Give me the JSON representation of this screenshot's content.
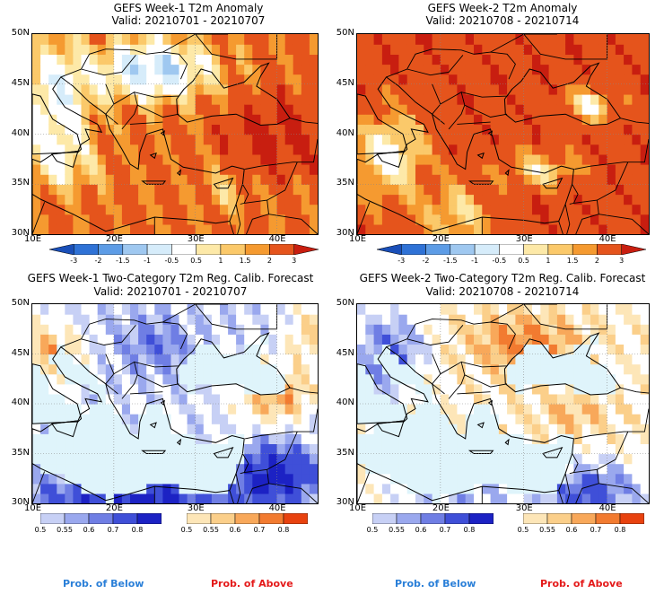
{
  "panels": [
    {
      "title": "GEFS Week-1 T2m Anomaly",
      "valid": "Valid: 20210701 - 20210707",
      "kind": "anomaly",
      "week": 1
    },
    {
      "title": "GEFS Week-2 T2m Anomaly",
      "valid": "Valid: 20210708 - 20210714",
      "kind": "anomaly",
      "week": 2
    },
    {
      "title": "GEFS Week-1 Two-Category T2m Reg. Calib. Forecast",
      "valid": "Valid: 20210701 - 20210707",
      "kind": "prob",
      "week": 1
    },
    {
      "title": "GEFS Week-2 Two-Category T2m Reg. Calib. Forecast",
      "valid": "Valid: 20210708 - 20210714",
      "kind": "prob",
      "week": 2
    }
  ],
  "lat_labels": [
    "50N",
    "45N",
    "40N",
    "35N",
    "30N"
  ],
  "lon_labels": [
    "10E",
    "20E",
    "30E",
    "40E"
  ],
  "anomaly_colorbar": {
    "labels": [
      "-3",
      "-2",
      "-1.5",
      "-1",
      "-0.5",
      "0.5",
      "1",
      "1.5",
      "2",
      "3"
    ],
    "colors": [
      "#1a4fb8",
      "#2f72d6",
      "#5d9ce6",
      "#9fc8f0",
      "#d6ecfa",
      "#ffffff",
      "#fde9a8",
      "#fbc96a",
      "#f59a30",
      "#e5541c",
      "#c81e10"
    ]
  },
  "prob_colorbar_below": {
    "labels": [
      "0.5",
      "0.55",
      "0.6",
      "0.7",
      "0.8"
    ],
    "colors": [
      "#c7d0f5",
      "#9aa8ee",
      "#6f7ee4",
      "#3f4fd8",
      "#1c22c4"
    ]
  },
  "prob_colorbar_above": {
    "labels": [
      "0.5",
      "0.55",
      "0.6",
      "0.7",
      "0.8"
    ],
    "colors": [
      "#fde6b8",
      "#fbcf8a",
      "#f8a85a",
      "#f27b30",
      "#e8420f"
    ]
  },
  "footer": {
    "below_left": "Prob. of Below",
    "above_left": "Prob. of Above",
    "below_right": "Prob. of Below",
    "above_right": "Prob. of Above",
    "below_color": "#2a7fd8",
    "above_color": "#e41a1a"
  },
  "colors": {
    "sea_prob": "#dff4fb",
    "land_neutral_prob": "#ffffff"
  }
}
